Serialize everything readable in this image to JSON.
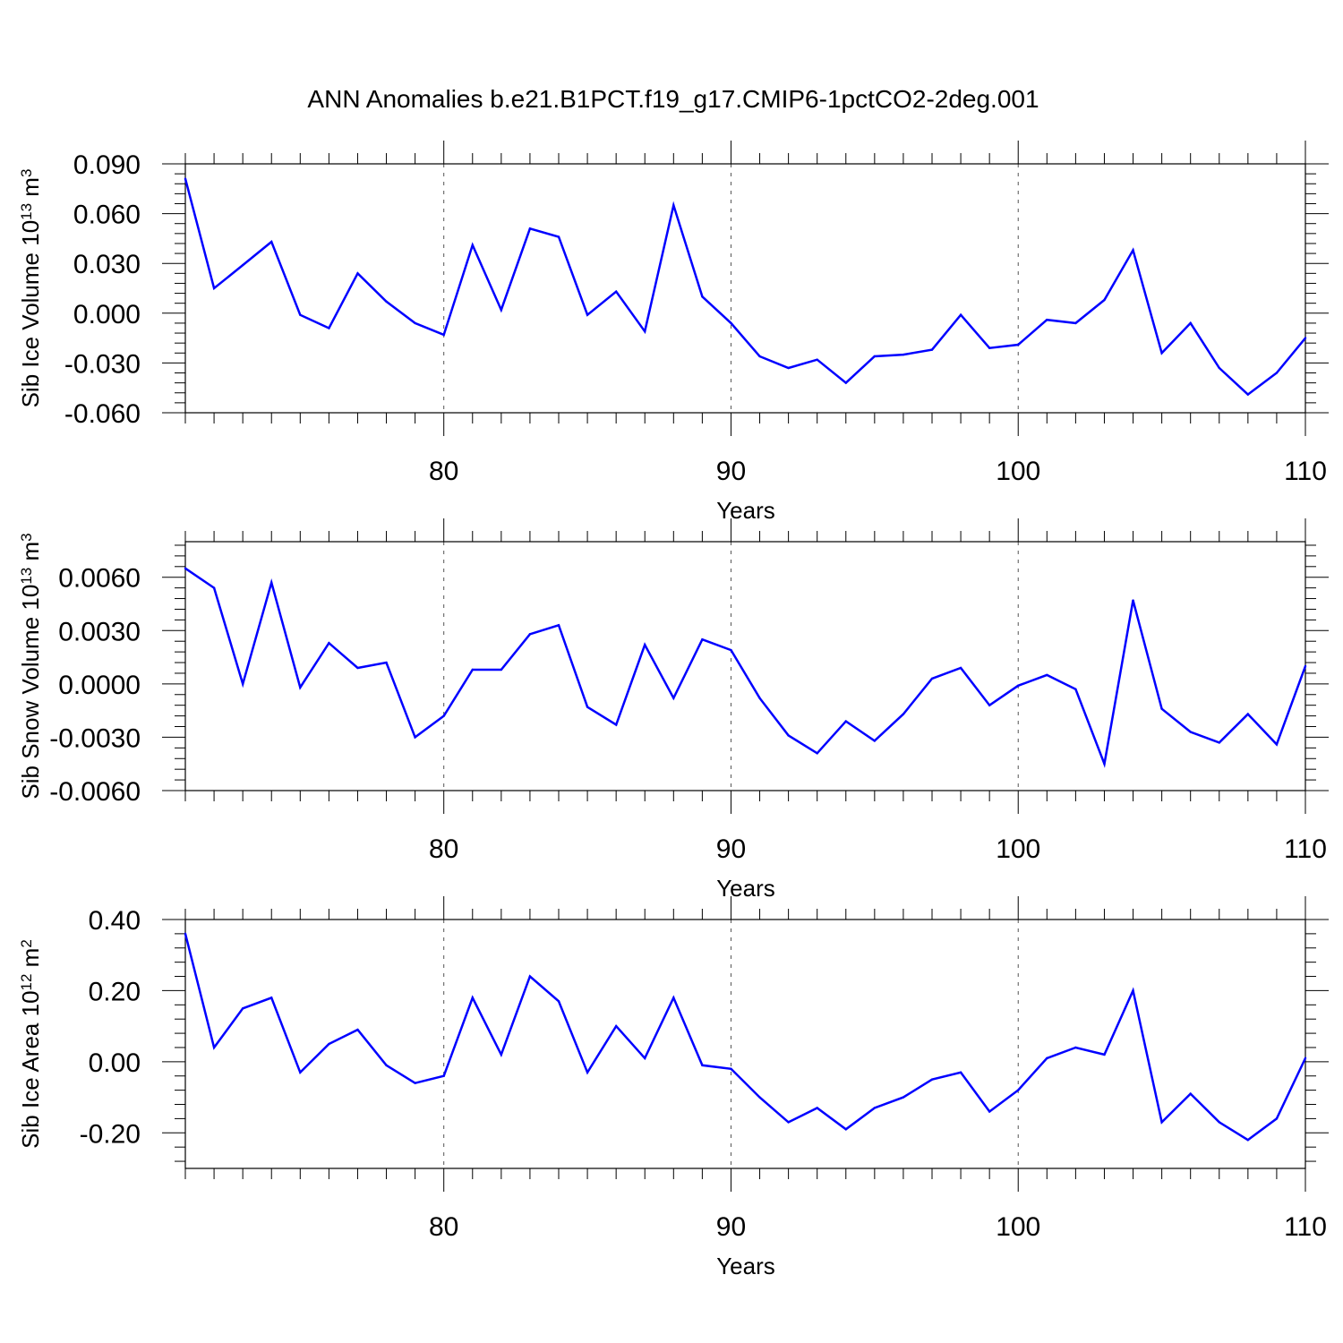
{
  "title": "ANN Anomalies b.e21.B1PCT.f19_g17.CMIP6-1pctCO2-2deg.001",
  "colors": {
    "line": "#0000ff",
    "axis": "#000000",
    "grid": "#555555"
  },
  "chart_data": [
    {
      "type": "line",
      "ylabel": {
        "text": "Sib Ice Volume 10",
        "sup1": "13",
        "mid": " m",
        "sup2": "3"
      },
      "xlabel": "Years",
      "xlim": [
        71,
        110
      ],
      "ylim": [
        -0.06,
        0.09
      ],
      "yticks": [
        -0.06,
        -0.03,
        0.0,
        0.03,
        0.06,
        0.09
      ],
      "yticklabels": [
        "-0.060",
        "-0.030",
        "0.000",
        "0.030",
        "0.060",
        "0.090"
      ],
      "xticks": [
        80,
        90,
        100,
        110
      ],
      "xticklabels": [
        "80",
        "90",
        "100",
        "110"
      ],
      "grid_x": [
        80,
        90,
        100
      ],
      "x": [
        71,
        72,
        73,
        74,
        75,
        76,
        77,
        78,
        79,
        80,
        81,
        82,
        83,
        84,
        85,
        86,
        87,
        88,
        89,
        90,
        91,
        92,
        93,
        94,
        95,
        96,
        97,
        98,
        99,
        100,
        101,
        102,
        103,
        104,
        105,
        106,
        107,
        108,
        109,
        110
      ],
      "values": [
        0.081,
        0.015,
        0.029,
        0.043,
        -0.001,
        -0.009,
        0.024,
        0.007,
        -0.006,
        -0.013,
        0.041,
        0.002,
        0.051,
        0.046,
        -0.001,
        0.013,
        -0.011,
        0.065,
        0.01,
        -0.006,
        -0.026,
        -0.033,
        -0.028,
        -0.042,
        -0.026,
        -0.025,
        -0.022,
        -0.001,
        -0.021,
        -0.019,
        -0.004,
        -0.006,
        0.008,
        0.038,
        -0.024,
        -0.006,
        -0.033,
        -0.049,
        -0.036,
        -0.015
      ]
    },
    {
      "type": "line",
      "ylabel": {
        "text": "Sib Snow Volume 10",
        "sup1": "13",
        "mid": " m",
        "sup2": "3"
      },
      "xlabel": "Years",
      "xlim": [
        71,
        110
      ],
      "ylim": [
        -0.006,
        0.008
      ],
      "yticks": [
        -0.006,
        -0.003,
        0.0,
        0.003,
        0.006
      ],
      "yticklabels": [
        "-0.0060",
        "-0.0030",
        "0.0000",
        "0.0030",
        "0.0060"
      ],
      "xticks": [
        80,
        90,
        100,
        110
      ],
      "xticklabels": [
        "80",
        "90",
        "100",
        "110"
      ],
      "grid_x": [
        80,
        90,
        100
      ],
      "x": [
        71,
        72,
        73,
        74,
        75,
        76,
        77,
        78,
        79,
        80,
        81,
        82,
        83,
        84,
        85,
        86,
        87,
        88,
        89,
        90,
        91,
        92,
        93,
        94,
        95,
        96,
        97,
        98,
        99,
        100,
        101,
        102,
        103,
        104,
        105,
        106,
        107,
        108,
        109,
        110
      ],
      "values": [
        0.0065,
        0.0054,
        0.0,
        0.0057,
        -0.0002,
        0.0023,
        0.0009,
        0.0012,
        -0.003,
        -0.0018,
        0.0008,
        0.0008,
        0.0028,
        0.0033,
        -0.0013,
        -0.0023,
        0.0022,
        -0.0008,
        0.0025,
        0.0019,
        -0.0008,
        -0.0029,
        -0.0039,
        -0.0021,
        -0.0032,
        -0.0017,
        0.0003,
        0.0009,
        -0.0012,
        -0.0001,
        0.0005,
        -0.0003,
        -0.0045,
        0.0047,
        -0.0014,
        -0.0027,
        -0.0033,
        -0.0017,
        -0.0034,
        0.001
      ]
    },
    {
      "type": "line",
      "ylabel": {
        "text": "Sib Ice Area 10",
        "sup1": "12",
        "mid": " m",
        "sup2": "2"
      },
      "xlabel": "Years",
      "xlim": [
        71,
        110
      ],
      "ylim": [
        -0.3,
        0.4
      ],
      "yticks": [
        -0.2,
        0.0,
        0.2,
        0.4
      ],
      "yticklabels": [
        "-0.20",
        "0.00",
        "0.20",
        "0.40"
      ],
      "xticks": [
        80,
        90,
        100,
        110
      ],
      "xticklabels": [
        "80",
        "90",
        "100",
        "110"
      ],
      "grid_x": [
        80,
        90,
        100
      ],
      "x": [
        71,
        72,
        73,
        74,
        75,
        76,
        77,
        78,
        79,
        80,
        81,
        82,
        83,
        84,
        85,
        86,
        87,
        88,
        89,
        90,
        91,
        92,
        93,
        94,
        95,
        96,
        97,
        98,
        99,
        100,
        101,
        102,
        103,
        104,
        105,
        106,
        107,
        108,
        109,
        110
      ],
      "values": [
        0.36,
        0.04,
        0.15,
        0.18,
        -0.03,
        0.05,
        0.09,
        -0.01,
        -0.06,
        -0.04,
        0.18,
        0.02,
        0.24,
        0.17,
        -0.03,
        0.1,
        0.01,
        0.18,
        -0.01,
        -0.02,
        -0.1,
        -0.17,
        -0.13,
        -0.19,
        -0.13,
        -0.1,
        -0.05,
        -0.03,
        -0.14,
        -0.08,
        0.01,
        0.04,
        0.02,
        0.2,
        -0.17,
        -0.09,
        -0.17,
        -0.22,
        -0.16,
        0.01
      ]
    }
  ]
}
